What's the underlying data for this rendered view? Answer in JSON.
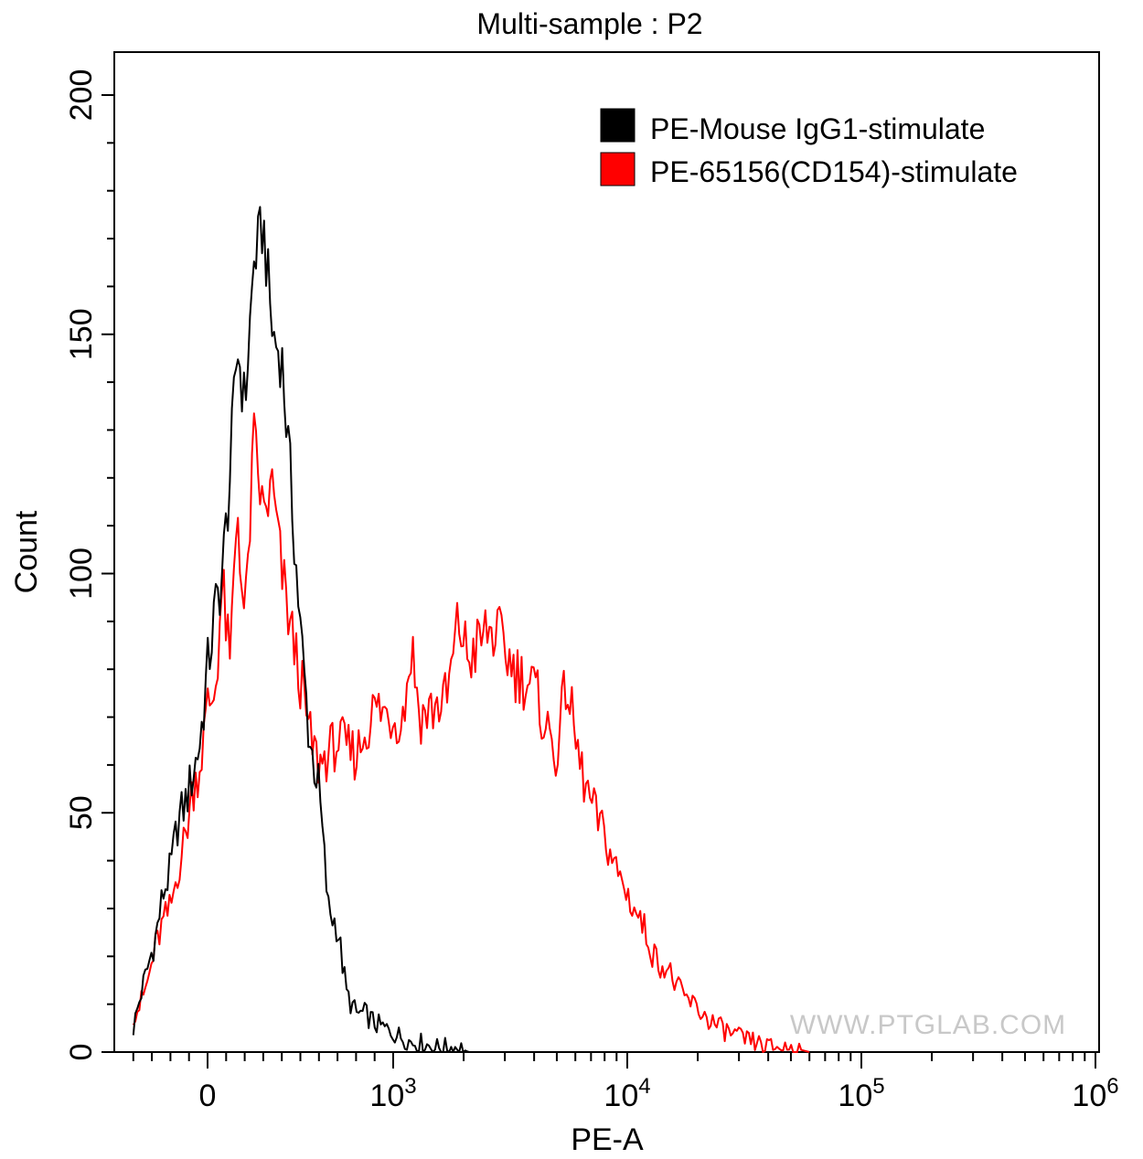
{
  "chart_data": {
    "type": "line",
    "title": "Multi-sample : P2",
    "xlabel": "PE-A",
    "ylabel": "Count",
    "x_scale": "biexponential (log, linear near zero)",
    "ylim": [
      0,
      200
    ],
    "y_ticks": [
      {
        "value": 0,
        "label": "0"
      },
      {
        "value": 50,
        "label": "50"
      },
      {
        "value": 100,
        "label": "100"
      },
      {
        "value": 150,
        "label": "150"
      },
      {
        "value": 200,
        "label": "200"
      }
    ],
    "x_ticks": [
      {
        "value": 0,
        "base": "0",
        "exp": ""
      },
      {
        "value": 1000,
        "base": "10",
        "exp": "3"
      },
      {
        "value": 10000,
        "base": "10",
        "exp": "4"
      },
      {
        "value": 100000,
        "base": "10",
        "exp": "5"
      },
      {
        "value": 1000000,
        "base": "10",
        "exp": "6"
      }
    ],
    "legend_position": "top-right",
    "series": [
      {
        "name": "PE-Mouse IgG1-stimulate",
        "color": "#000000",
        "x": [
          -400,
          -360,
          -320,
          -280,
          -240,
          -200,
          -160,
          -120,
          -80,
          -40,
          0,
          40,
          80,
          120,
          160,
          200,
          250,
          300,
          350,
          400,
          450,
          500,
          550,
          600,
          650,
          700,
          750,
          800,
          850,
          900,
          950,
          1000,
          1100,
          1200,
          1300,
          1500,
          1700,
          1900,
          2100,
          2500,
          3000
        ],
        "values": [
          5,
          12,
          18,
          24,
          33,
          38,
          48,
          52,
          58,
          65,
          80,
          92,
          100,
          120,
          148,
          135,
          165,
          173,
          150,
          145,
          118,
          88,
          65,
          55,
          30,
          26,
          12,
          8,
          8,
          6,
          5,
          4,
          3,
          2,
          2,
          1,
          1,
          1,
          0,
          0,
          0
        ]
      },
      {
        "name": "PE-65156(CD154)-stimulate",
        "color": "#ff0000",
        "x": [
          -400,
          -360,
          -320,
          -280,
          -240,
          -200,
          -160,
          -120,
          -80,
          -40,
          0,
          40,
          80,
          120,
          160,
          200,
          250,
          300,
          350,
          400,
          450,
          500,
          550,
          600,
          700,
          800,
          900,
          1000,
          1100,
          1200,
          1300,
          1500,
          1700,
          1900,
          2100,
          2300,
          2500,
          2800,
          3000,
          3300,
          3600,
          4000,
          4500,
          5000,
          5500,
          6000,
          6500,
          7000,
          8000,
          9000,
          10000,
          11000,
          12000,
          13000,
          15000,
          17000,
          19000,
          22000,
          25000,
          30000,
          35000,
          40000,
          45000,
          50000,
          60000
        ],
        "values": [
          8,
          10,
          15,
          22,
          27,
          30,
          38,
          45,
          55,
          60,
          72,
          75,
          98,
          80,
          115,
          88,
          128,
          112,
          118,
          100,
          88,
          78,
          66,
          60,
          65,
          62,
          72,
          70,
          70,
          85,
          70,
          72,
          74,
          90,
          82,
          85,
          88,
          87,
          84,
          80,
          78,
          76,
          68,
          62,
          78,
          65,
          57,
          52,
          45,
          38,
          33,
          29,
          25,
          20,
          17,
          12,
          10,
          7,
          5,
          3,
          2,
          1,
          1,
          1,
          0
        ]
      }
    ]
  },
  "watermark": "WWW.PTGLAB.COM"
}
